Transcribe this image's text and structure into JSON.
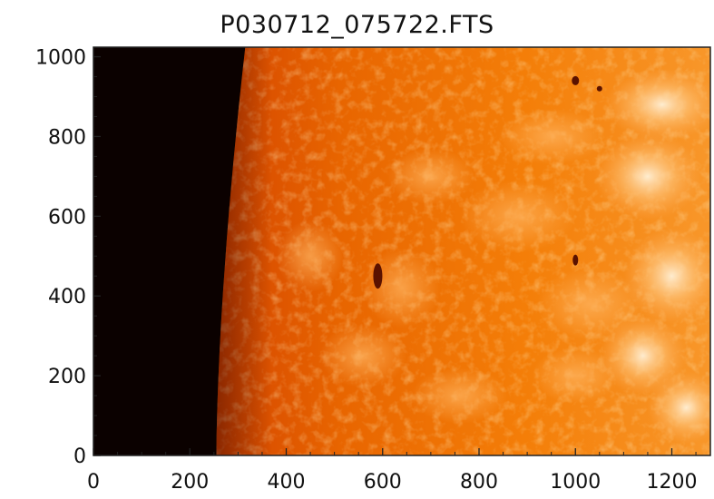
{
  "title": "P030712_075722.FTS",
  "image": {
    "subject": "solar limb full-disk image",
    "colormap": [
      "#0d0200",
      "#5a0e00",
      "#b32100",
      "#d84a00",
      "#f2820a",
      "#ffb75a",
      "#ffe0b8"
    ]
  },
  "axes": {
    "x": {
      "min": 0,
      "max": 1280,
      "ticks": [
        0,
        200,
        400,
        600,
        800,
        1000,
        1200
      ],
      "tick_labels": [
        "0",
        "200",
        "400",
        "600",
        "800",
        "1000",
        "1200"
      ]
    },
    "y": {
      "min": 0,
      "max": 1024,
      "ticks": [
        0,
        200,
        400,
        600,
        800,
        1000
      ],
      "tick_labels": [
        "0",
        "200",
        "400",
        "600",
        "800",
        "1000"
      ]
    }
  }
}
